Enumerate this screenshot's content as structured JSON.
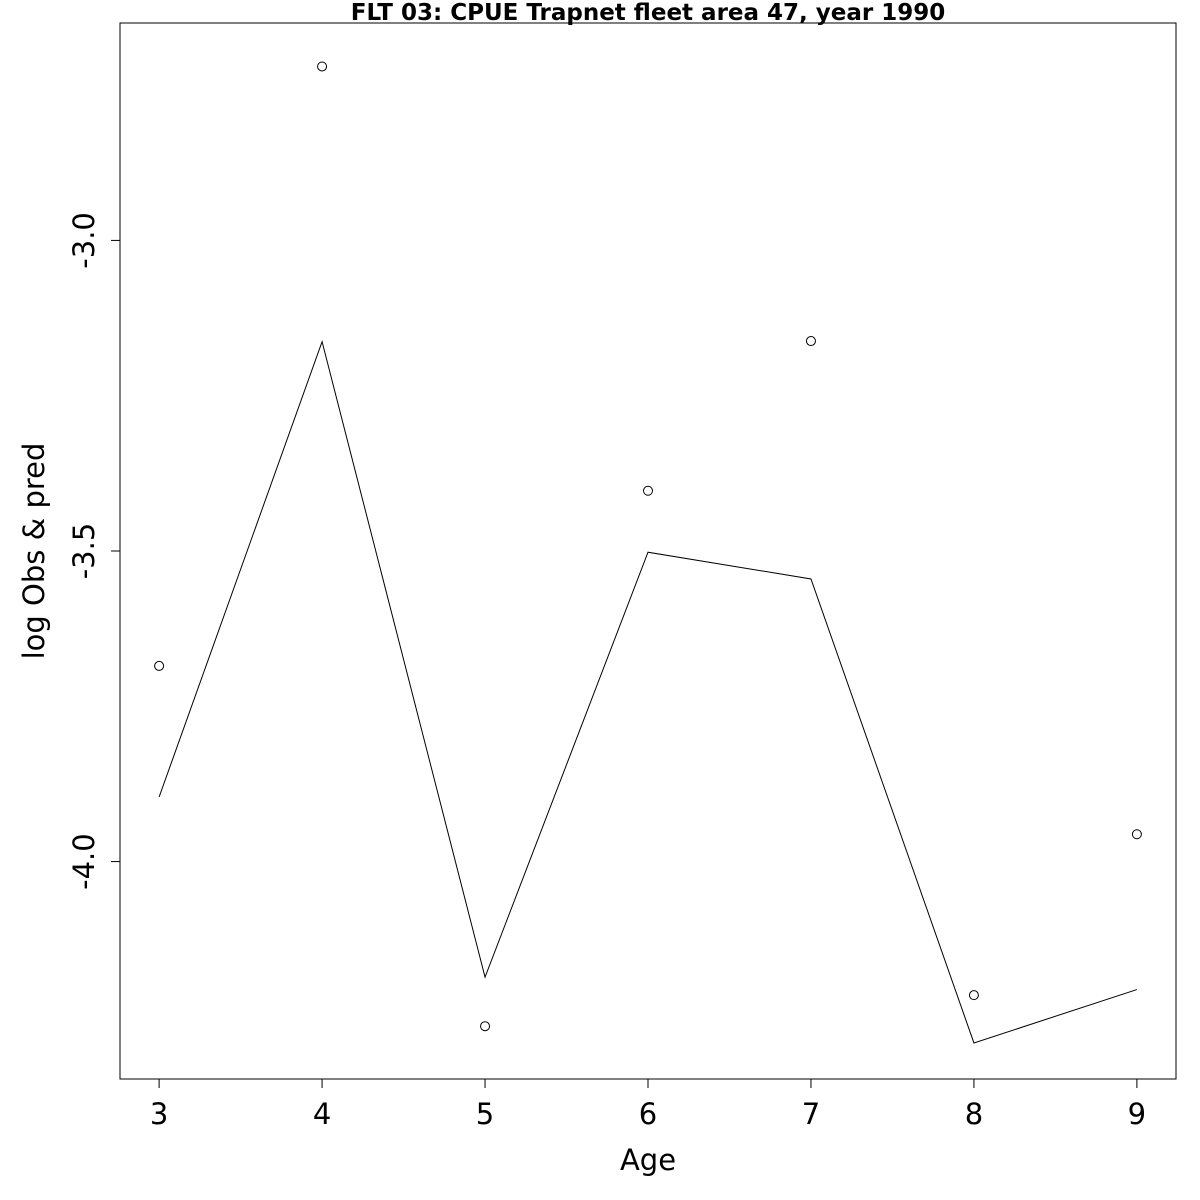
{
  "chart_data": {
    "type": "line",
    "title": "FLT 03: CPUE Trapnet fleet area 47, year 1990",
    "xlabel": "Age",
    "ylabel": "log Obs & pred",
    "xlim": [
      2.76,
      9.24
    ],
    "ylim": [
      -4.35,
      -2.65
    ],
    "x_ticks": [
      3,
      4,
      5,
      6,
      7,
      8,
      9
    ],
    "x_tick_labels": [
      "3",
      "4",
      "5",
      "6",
      "7",
      "8",
      "9"
    ],
    "y_ticks": [
      -4.0,
      -3.5,
      -3.0
    ],
    "y_tick_labels": [
      "-4.0",
      "-3.5",
      "-3.0"
    ],
    "grid": false,
    "legend": "none",
    "series": [
      {
        "kind": "points",
        "marker": "open-circle",
        "x": [
          3,
          4,
          5,
          6,
          7,
          8,
          9
        ],
        "y": [
          -3.685,
          -2.72,
          -4.265,
          -3.403,
          -3.162,
          -4.215,
          -3.956
        ]
      },
      {
        "kind": "line",
        "x": [
          3,
          4,
          5,
          6,
          7,
          8,
          9
        ],
        "y": [
          -3.896,
          -3.163,
          -4.186,
          -3.502,
          -3.545,
          -4.292,
          -4.206
        ]
      }
    ],
    "color": "#000000"
  }
}
